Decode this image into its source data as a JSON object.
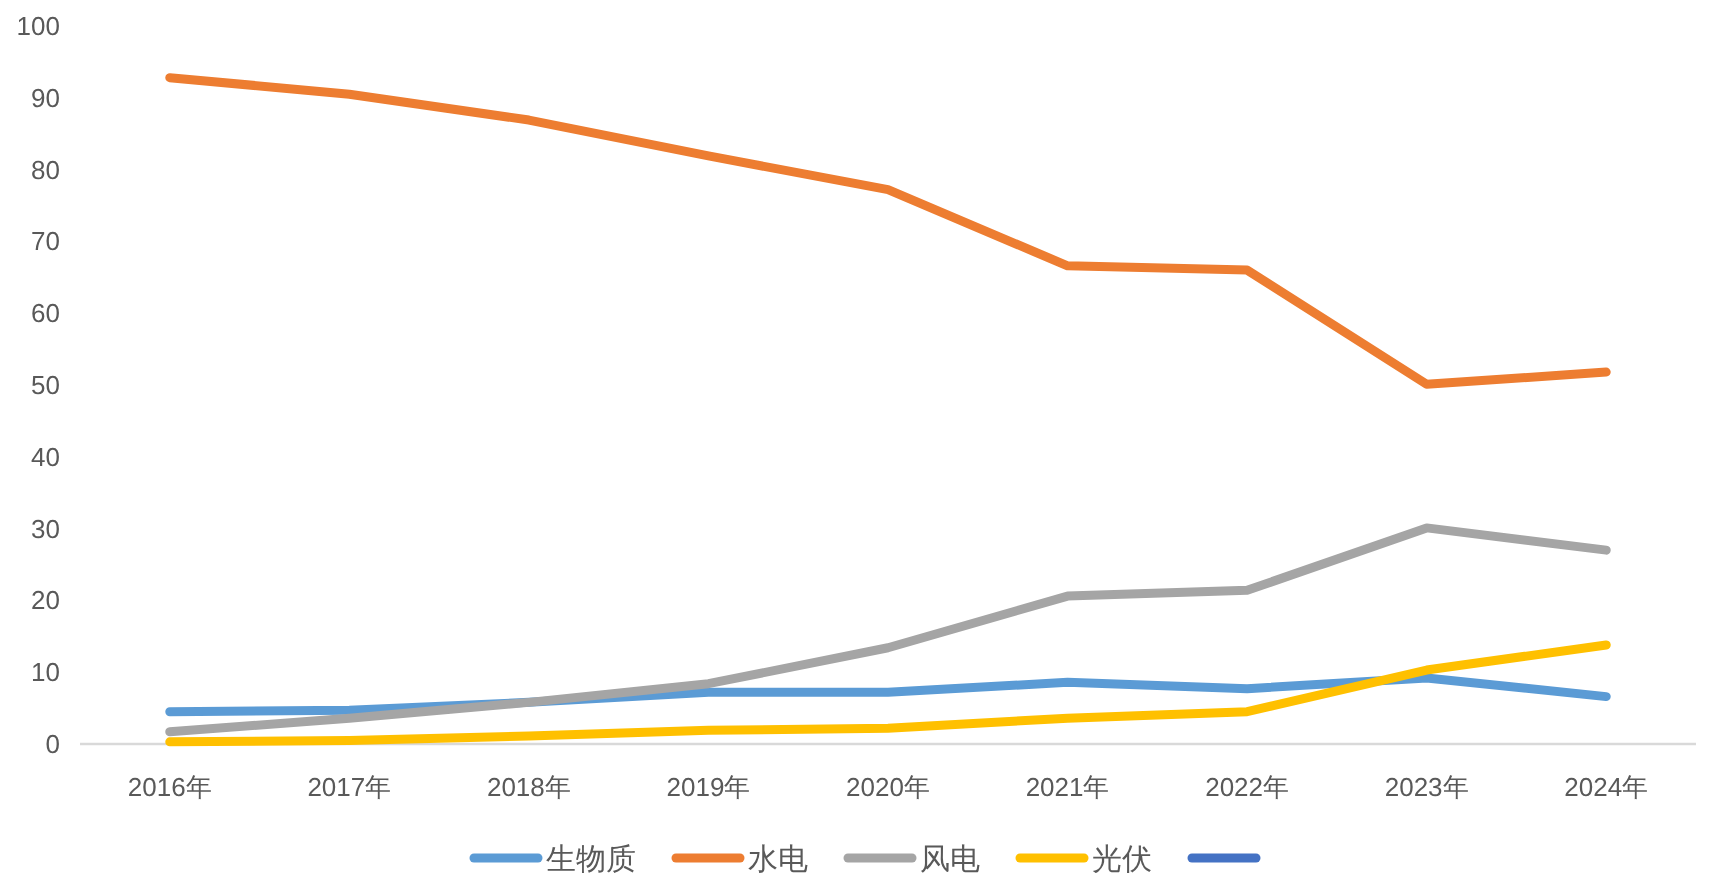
{
  "chart_data": {
    "type": "line",
    "categories": [
      "2016年",
      "2017年",
      "2018年",
      "2019年",
      "2020年",
      "2021年",
      "2022年",
      "2023年",
      "2024年"
    ],
    "series": [
      {
        "name": "生物质",
        "color": "#5b9bd5",
        "values": [
          4.5,
          4.7,
          5.8,
          7.2,
          7.2,
          8.6,
          7.7,
          9.2,
          6.6
        ]
      },
      {
        "name": "水电",
        "color": "#ed7d31",
        "values": [
          92.8,
          90.5,
          86.9,
          81.9,
          77.2,
          66.6,
          66.0,
          50.1,
          51.8
        ]
      },
      {
        "name": "风电",
        "color": "#a5a5a5",
        "values": [
          1.7,
          3.6,
          5.8,
          8.4,
          13.4,
          20.6,
          21.4,
          30.1,
          27.0
        ]
      },
      {
        "name": "光伏",
        "color": "#ffc000",
        "values": [
          0.3,
          0.5,
          1.1,
          1.9,
          2.2,
          3.6,
          4.5,
          10.3,
          13.8
        ]
      },
      {
        "color": "#4472c4",
        "values": [
          null,
          null,
          null,
          null,
          null,
          null,
          null,
          null,
          null
        ]
      }
    ],
    "ylim": [
      0,
      100
    ],
    "yticks": [
      0,
      10,
      20,
      30,
      40,
      50,
      60,
      70,
      80,
      90,
      100
    ],
    "legend": "bottom",
    "line_style": "solid"
  }
}
